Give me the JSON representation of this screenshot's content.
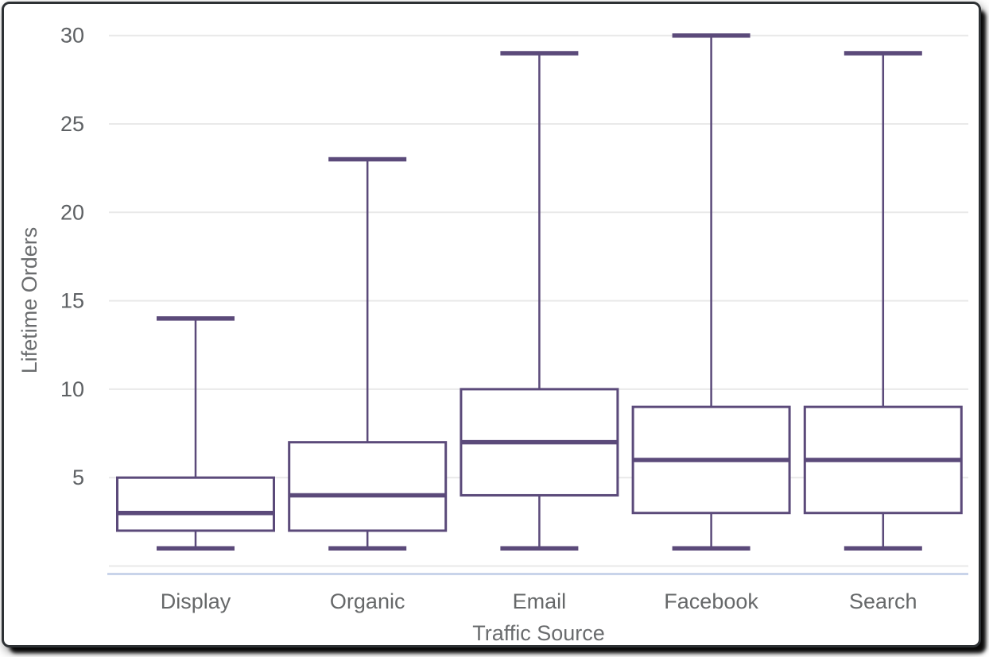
{
  "window": {
    "type": "chart-widget",
    "background": "#ffffff",
    "border_color": "#2d3134",
    "shadow_color": "#000000"
  },
  "chart_data": {
    "type": "box",
    "title": "",
    "xlabel": "Traffic Source",
    "ylabel": "Lifetime Orders",
    "categories": [
      "Display",
      "Organic",
      "Email",
      "Facebook",
      "Search"
    ],
    "series": [
      {
        "name": "Display",
        "min": 1,
        "q1": 2,
        "median": 3,
        "q3": 5,
        "max": 14
      },
      {
        "name": "Organic",
        "min": 1,
        "q1": 2,
        "median": 4,
        "q3": 7,
        "max": 23
      },
      {
        "name": "Email",
        "min": 1,
        "q1": 4,
        "median": 7,
        "q3": 10,
        "max": 29
      },
      {
        "name": "Facebook",
        "min": 1,
        "q1": 3,
        "median": 6,
        "q3": 9,
        "max": 30
      },
      {
        "name": "Search",
        "min": 1,
        "q1": 3,
        "median": 6,
        "q3": 9,
        "max": 29
      }
    ],
    "yticks": [
      5,
      10,
      15,
      20,
      25,
      30
    ],
    "ylim": [
      0,
      30
    ],
    "grid": true,
    "legend": "none",
    "colors": {
      "box_stroke": "#5b4a7a",
      "box_fill": "#ffffff",
      "gridline": "#e9e9e9",
      "zero_line": "#e9e9e9",
      "axis_baseline": "#c9d4ea",
      "tick_text": "#5e6164",
      "category_text": "#666869",
      "axis_title_text": "#6a6c6e"
    }
  }
}
